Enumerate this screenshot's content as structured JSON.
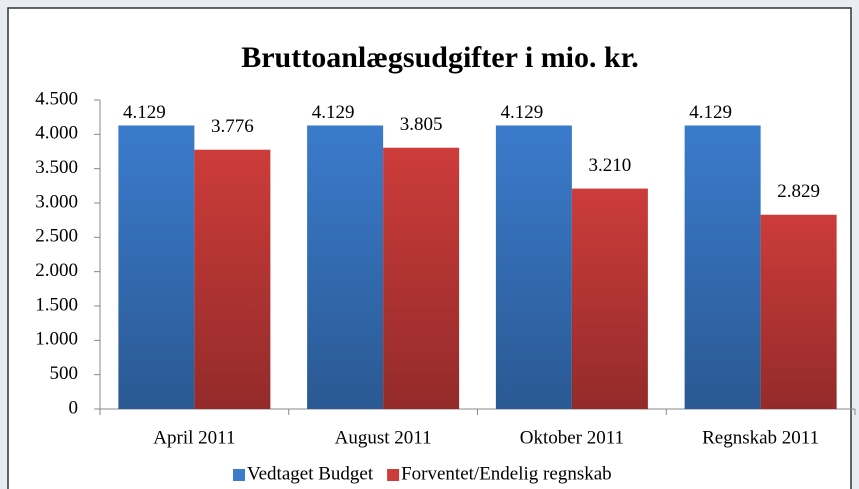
{
  "chart_data": {
    "type": "bar",
    "title": "Bruttoanlægsudgifter i mio. kr.",
    "categories": [
      "April 2011",
      "August 2011",
      "Oktober 2011",
      "Regnskab 2011"
    ],
    "series": [
      {
        "name": "Vedtaget Budget",
        "color": "#3b7bcc",
        "values": [
          4129,
          4129,
          4129,
          4129
        ],
        "value_labels": [
          "4.129",
          "4.129",
          "4.129",
          "4.129"
        ]
      },
      {
        "name": "Forventet/Endelig regnskab",
        "color": "#cc3c3a",
        "values": [
          3776,
          3805,
          3210,
          2829
        ],
        "value_labels": [
          "3.776",
          "3.805",
          "3.210",
          "2.829"
        ]
      }
    ],
    "ylim": [
      0,
      4500
    ],
    "yticks": [
      0,
      500,
      {
        "value": 1000,
        "label": "1.000"
      },
      {
        "value": 1500,
        "label": "1.500"
      },
      {
        "value": 2000,
        "label": "2.000"
      },
      {
        "value": 2500,
        "label": "2.500"
      },
      {
        "value": 3000,
        "label": "3.000"
      },
      {
        "value": 3500,
        "label": "3.500"
      },
      {
        "value": 4000,
        "label": "4.000"
      },
      {
        "value": 4500,
        "label": "4.500"
      }
    ],
    "legend": "bottom"
  }
}
